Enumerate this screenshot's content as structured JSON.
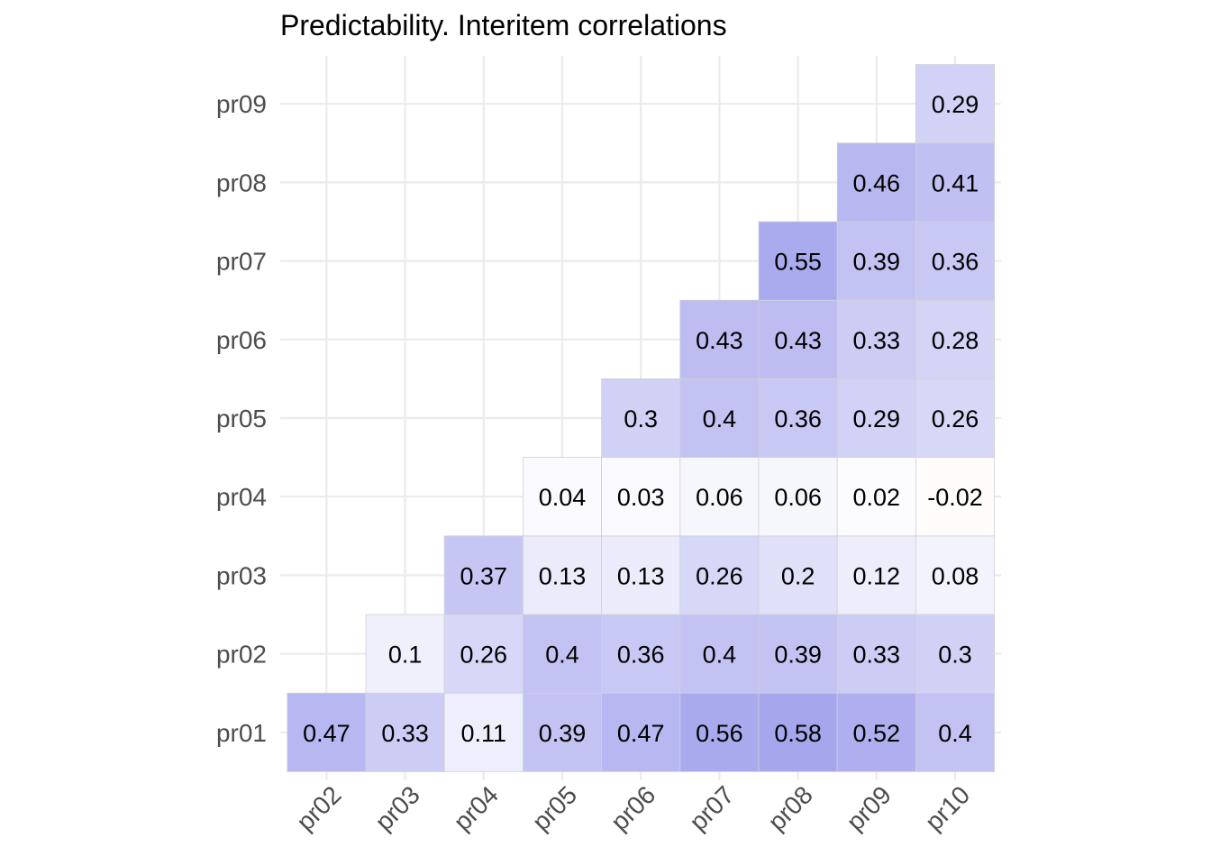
{
  "chart_data": {
    "type": "heatmap",
    "title": "Predictability. Interitem correlations",
    "xlabel": "",
    "ylabel": "",
    "x_categories": [
      "pr02",
      "pr03",
      "pr04",
      "pr05",
      "pr06",
      "pr07",
      "pr08",
      "pr09",
      "pr10"
    ],
    "y_categories": [
      "pr01",
      "pr02",
      "pr03",
      "pr04",
      "pr05",
      "pr06",
      "pr07",
      "pr08",
      "pr09"
    ],
    "colors": {
      "positive": "#3a3ad8",
      "negative": "#e0501a",
      "grid": "#ebebeb",
      "text": "#000000",
      "axis_text": "#4d4d4d"
    },
    "grid": true,
    "legend": "none",
    "cells": [
      {
        "x": "pr02",
        "y": "pr01",
        "value": 0.47
      },
      {
        "x": "pr03",
        "y": "pr01",
        "value": 0.33
      },
      {
        "x": "pr04",
        "y": "pr01",
        "value": 0.11
      },
      {
        "x": "pr05",
        "y": "pr01",
        "value": 0.39
      },
      {
        "x": "pr06",
        "y": "pr01",
        "value": 0.47
      },
      {
        "x": "pr07",
        "y": "pr01",
        "value": 0.56
      },
      {
        "x": "pr08",
        "y": "pr01",
        "value": 0.58
      },
      {
        "x": "pr09",
        "y": "pr01",
        "value": 0.52
      },
      {
        "x": "pr10",
        "y": "pr01",
        "value": 0.4
      },
      {
        "x": "pr03",
        "y": "pr02",
        "value": 0.1
      },
      {
        "x": "pr04",
        "y": "pr02",
        "value": 0.26
      },
      {
        "x": "pr05",
        "y": "pr02",
        "value": 0.4
      },
      {
        "x": "pr06",
        "y": "pr02",
        "value": 0.36
      },
      {
        "x": "pr07",
        "y": "pr02",
        "value": 0.4
      },
      {
        "x": "pr08",
        "y": "pr02",
        "value": 0.39
      },
      {
        "x": "pr09",
        "y": "pr02",
        "value": 0.33
      },
      {
        "x": "pr10",
        "y": "pr02",
        "value": 0.3
      },
      {
        "x": "pr04",
        "y": "pr03",
        "value": 0.37
      },
      {
        "x": "pr05",
        "y": "pr03",
        "value": 0.13
      },
      {
        "x": "pr06",
        "y": "pr03",
        "value": 0.13
      },
      {
        "x": "pr07",
        "y": "pr03",
        "value": 0.26
      },
      {
        "x": "pr08",
        "y": "pr03",
        "value": 0.2
      },
      {
        "x": "pr09",
        "y": "pr03",
        "value": 0.12
      },
      {
        "x": "pr10",
        "y": "pr03",
        "value": 0.08
      },
      {
        "x": "pr05",
        "y": "pr04",
        "value": 0.04
      },
      {
        "x": "pr06",
        "y": "pr04",
        "value": 0.03
      },
      {
        "x": "pr07",
        "y": "pr04",
        "value": 0.06
      },
      {
        "x": "pr08",
        "y": "pr04",
        "value": 0.06
      },
      {
        "x": "pr09",
        "y": "pr04",
        "value": 0.02
      },
      {
        "x": "pr10",
        "y": "pr04",
        "value": -0.02
      },
      {
        "x": "pr06",
        "y": "pr05",
        "value": 0.3
      },
      {
        "x": "pr07",
        "y": "pr05",
        "value": 0.4
      },
      {
        "x": "pr08",
        "y": "pr05",
        "value": 0.36
      },
      {
        "x": "pr09",
        "y": "pr05",
        "value": 0.29
      },
      {
        "x": "pr10",
        "y": "pr05",
        "value": 0.26
      },
      {
        "x": "pr07",
        "y": "pr06",
        "value": 0.43
      },
      {
        "x": "pr08",
        "y": "pr06",
        "value": 0.43
      },
      {
        "x": "pr09",
        "y": "pr06",
        "value": 0.33
      },
      {
        "x": "pr10",
        "y": "pr06",
        "value": 0.28
      },
      {
        "x": "pr08",
        "y": "pr07",
        "value": 0.55
      },
      {
        "x": "pr09",
        "y": "pr07",
        "value": 0.39
      },
      {
        "x": "pr10",
        "y": "pr07",
        "value": 0.36
      },
      {
        "x": "pr09",
        "y": "pr08",
        "value": 0.46
      },
      {
        "x": "pr10",
        "y": "pr08",
        "value": 0.41
      },
      {
        "x": "pr10",
        "y": "pr09",
        "value": 0.29
      }
    ]
  }
}
